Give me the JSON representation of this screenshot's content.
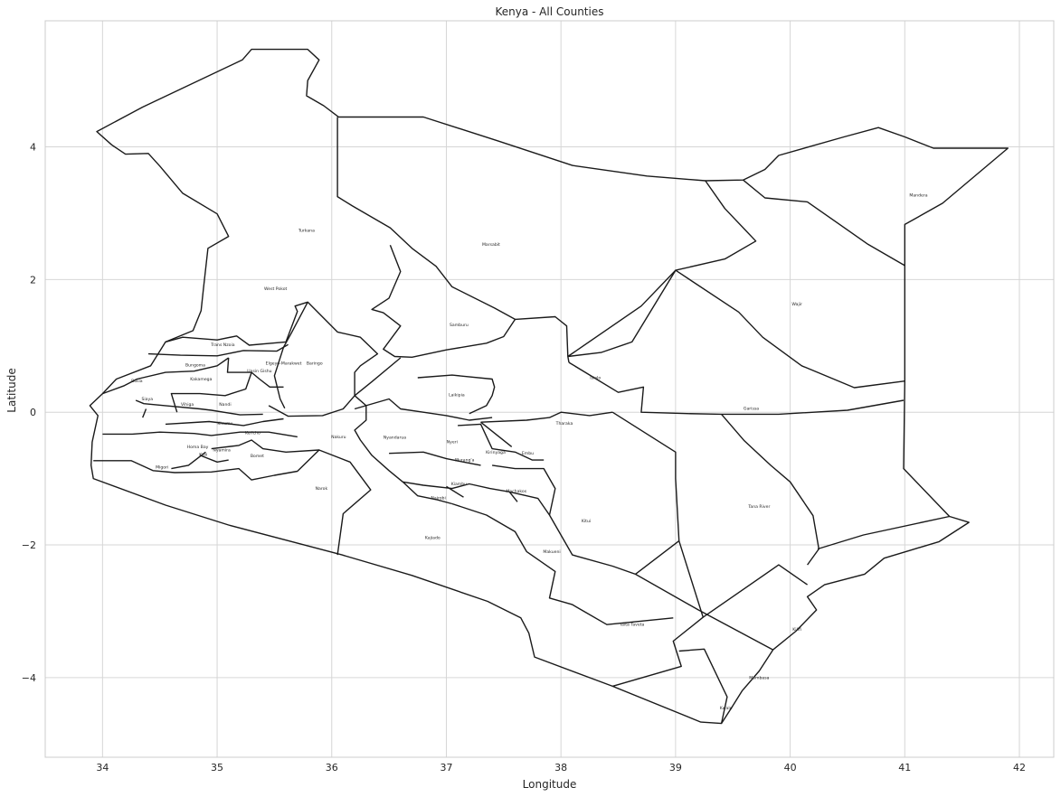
{
  "chart_data": {
    "type": "map",
    "title": "Kenya - All Counties",
    "xlabel": "Longitude",
    "ylabel": "Latitude",
    "xlim": [
      33.5,
      42.3
    ],
    "ylim": [
      -5.2,
      5.9
    ],
    "xticks": [
      34,
      35,
      36,
      37,
      38,
      39,
      40,
      41,
      42
    ],
    "yticks": [
      -4,
      -2,
      0,
      2,
      4
    ],
    "grid": true,
    "counties": [
      {
        "name": "Turkana",
        "lon": 35.78,
        "lat": 2.74
      },
      {
        "name": "Marsabit",
        "lon": 37.39,
        "lat": 2.53
      },
      {
        "name": "Mandera",
        "lon": 41.12,
        "lat": 3.27
      },
      {
        "name": "Wajir",
        "lon": 40.06,
        "lat": 1.63
      },
      {
        "name": "West Pokot",
        "lon": 35.51,
        "lat": 1.86
      },
      {
        "name": "Samburu",
        "lon": 37.11,
        "lat": 1.32
      },
      {
        "name": "Trans Nzoia",
        "lon": 35.05,
        "lat": 1.02
      },
      {
        "name": "Bungoma",
        "lon": 34.81,
        "lat": 0.71
      },
      {
        "name": "Uasin Gishu",
        "lon": 35.37,
        "lat": 0.62
      },
      {
        "name": "Elgeyo-Marakwet",
        "lon": 35.58,
        "lat": 0.74
      },
      {
        "name": "Baringo",
        "lon": 35.85,
        "lat": 0.74
      },
      {
        "name": "Kakamega",
        "lon": 34.86,
        "lat": 0.5
      },
      {
        "name": "Busia",
        "lon": 34.3,
        "lat": 0.47
      },
      {
        "name": "Isiolo",
        "lon": 38.3,
        "lat": 0.52
      },
      {
        "name": "Laikipia",
        "lon": 37.09,
        "lat": 0.26
      },
      {
        "name": "Siaya",
        "lon": 34.39,
        "lat": 0.2
      },
      {
        "name": "Vihiga",
        "lon": 34.74,
        "lat": 0.12
      },
      {
        "name": "Nandi",
        "lon": 35.07,
        "lat": 0.12
      },
      {
        "name": "Garissa",
        "lon": 39.66,
        "lat": 0.06
      },
      {
        "name": "Kisumu",
        "lon": 35.07,
        "lat": -0.17
      },
      {
        "name": "Tharaka",
        "lon": 38.03,
        "lat": -0.17
      },
      {
        "name": "Kericho",
        "lon": 35.31,
        "lat": -0.31
      },
      {
        "name": "Nakuru",
        "lon": 36.06,
        "lat": -0.37
      },
      {
        "name": "Nyandarua",
        "lon": 36.55,
        "lat": -0.38
      },
      {
        "name": "Nyeri",
        "lon": 37.05,
        "lat": -0.45
      },
      {
        "name": "Homa Bay",
        "lon": 34.83,
        "lat": -0.52
      },
      {
        "name": "Nyamira",
        "lon": 35.04,
        "lat": -0.57
      },
      {
        "name": "Kirinyaga",
        "lon": 37.43,
        "lat": -0.6
      },
      {
        "name": "Embu",
        "lon": 37.71,
        "lat": -0.62
      },
      {
        "name": "Kisii",
        "lon": 34.88,
        "lat": -0.64
      },
      {
        "name": "Bomet",
        "lon": 35.35,
        "lat": -0.66
      },
      {
        "name": "Murang'a",
        "lon": 37.16,
        "lat": -0.72
      },
      {
        "name": "Migori",
        "lon": 34.52,
        "lat": -0.83
      },
      {
        "name": "Kiambu",
        "lon": 37.11,
        "lat": -1.08
      },
      {
        "name": "Narok",
        "lon": 35.91,
        "lat": -1.15
      },
      {
        "name": "Machakos",
        "lon": 37.61,
        "lat": -1.19
      },
      {
        "name": "Nairobi",
        "lon": 36.93,
        "lat": -1.29
      },
      {
        "name": "Tana River",
        "lon": 39.73,
        "lat": -1.42
      },
      {
        "name": "Kitui",
        "lon": 38.22,
        "lat": -1.64
      },
      {
        "name": "Kajiado",
        "lon": 36.88,
        "lat": -1.89
      },
      {
        "name": "Makueni",
        "lon": 37.92,
        "lat": -2.1
      },
      {
        "name": "Taita Taveta",
        "lon": 38.62,
        "lat": -3.2
      },
      {
        "name": "Kilifi",
        "lon": 40.06,
        "lat": -3.27
      },
      {
        "name": "Mombasa",
        "lon": 39.73,
        "lat": -4.0
      },
      {
        "name": "Kwale",
        "lon": 39.44,
        "lat": -4.46
      }
    ]
  }
}
